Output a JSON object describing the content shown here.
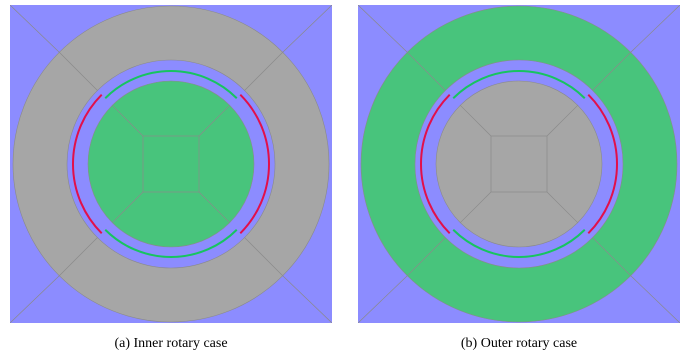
{
  "colors": {
    "background": "#8c8cff",
    "grey": "#a6a6a6",
    "green": "#48c47c",
    "mesh_line": "#8a8a8a",
    "red_arc": "#e2104a",
    "green_arc": "#17c45f"
  },
  "panels": [
    {
      "caption": "(a) Inner rotary case",
      "outer_ring_color": "grey",
      "inner_disk_color": "green"
    },
    {
      "caption": "(b) Outer rotary case",
      "outer_ring_color": "green",
      "inner_disk_color": "grey"
    }
  ]
}
